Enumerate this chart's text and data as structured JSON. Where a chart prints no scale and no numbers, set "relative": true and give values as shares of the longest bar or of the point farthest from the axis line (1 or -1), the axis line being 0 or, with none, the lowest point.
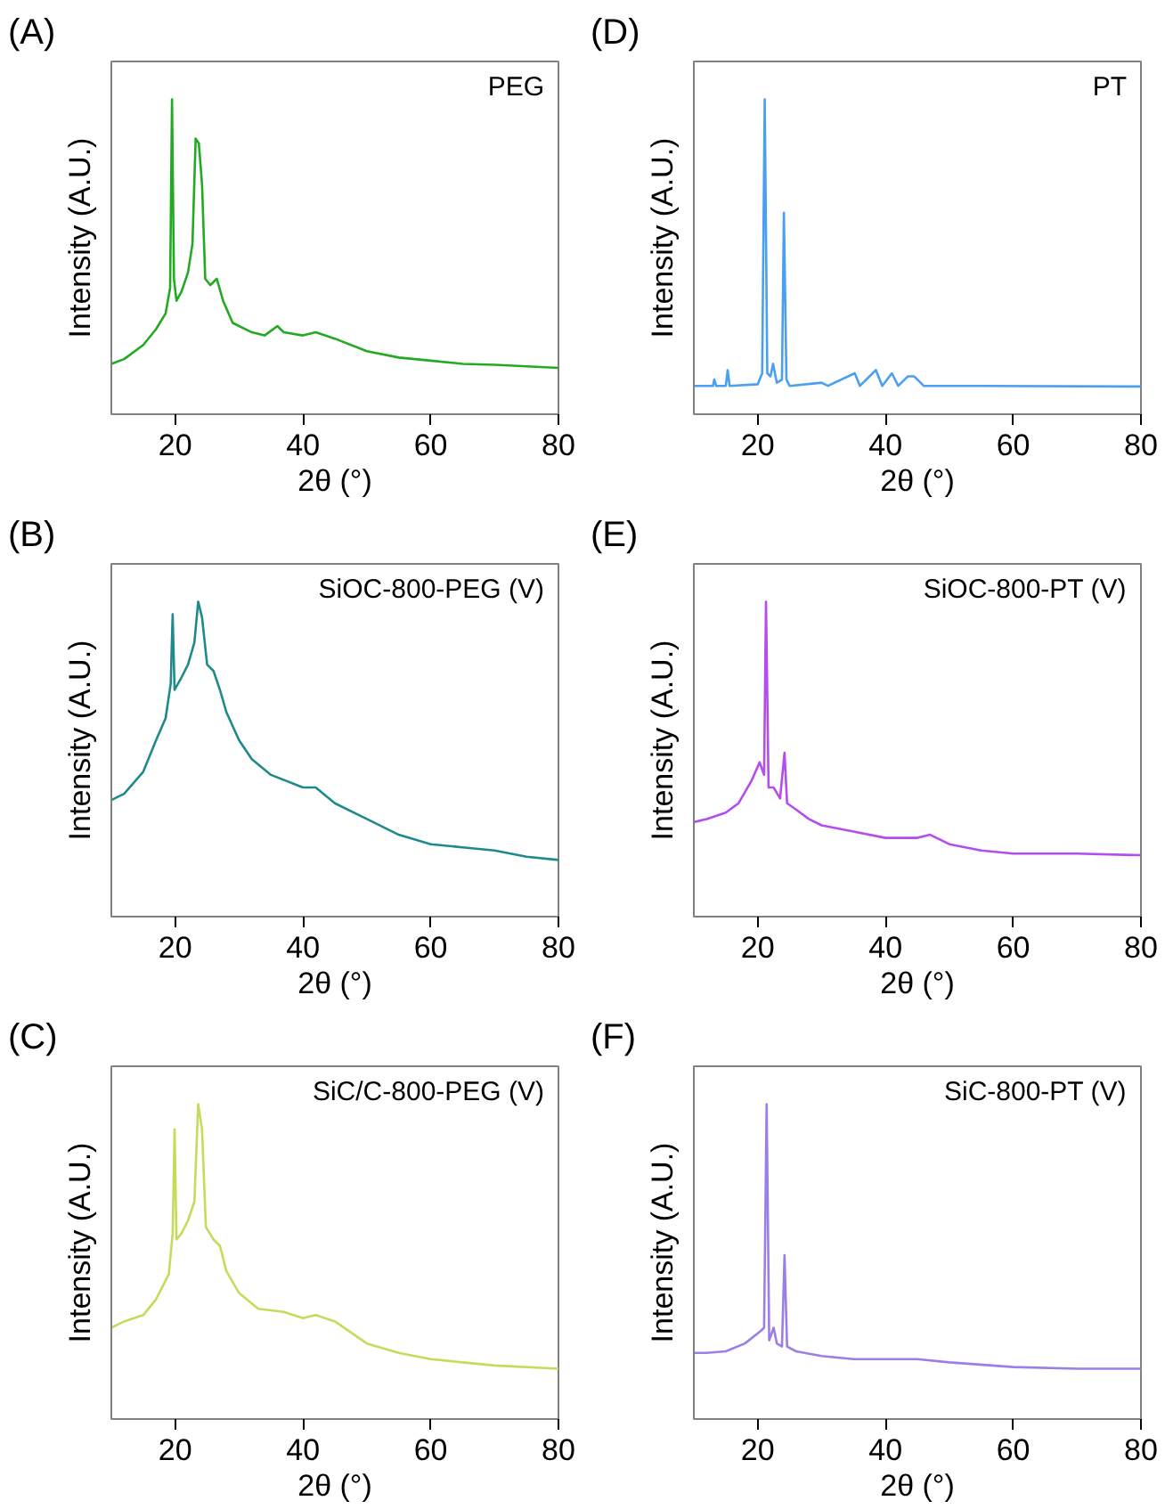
{
  "chart_data": [
    {
      "type": "line",
      "relative": true,
      "xlabel": "2θ (°)",
      "ylabel": "Intensity (A.U.)",
      "annotations": [
        "(A)",
        "PEG"
      ],
      "xlim": [
        10,
        80
      ],
      "xticks": [
        20,
        40,
        60,
        80
      ],
      "grid": false,
      "series": [
        {
          "color": "#22aa22",
          "x": [
            10,
            12,
            15,
            17,
            18.5,
            19.2,
            19.5,
            19.8,
            20.2,
            21,
            22,
            22.7,
            23.2,
            23.7,
            24.2,
            24.7,
            25.5,
            26.5,
            27.5,
            29,
            32,
            34,
            36,
            37,
            40,
            42,
            45,
            50,
            55,
            60,
            65,
            70,
            80
          ],
          "values": [
            0.16,
            0.175,
            0.22,
            0.27,
            0.32,
            0.4,
            1.0,
            0.43,
            0.36,
            0.39,
            0.45,
            0.54,
            0.875,
            0.86,
            0.73,
            0.43,
            0.41,
            0.43,
            0.36,
            0.29,
            0.26,
            0.25,
            0.28,
            0.26,
            0.25,
            0.26,
            0.24,
            0.2,
            0.18,
            0.17,
            0.16,
            0.157,
            0.147
          ]
        }
      ]
    },
    {
      "type": "line",
      "relative": true,
      "xlabel": "2θ (°)",
      "ylabel": "Intensity (A.U.)",
      "annotations": [
        "(D)",
        "PT"
      ],
      "xlim": [
        10,
        80
      ],
      "xticks": [
        20,
        40,
        60,
        80
      ],
      "grid": false,
      "series": [
        {
          "color": "#4a9ff0",
          "x": [
            10,
            13,
            13.2,
            13.5,
            15,
            15.3,
            15.6,
            20,
            20.7,
            21.1,
            21.5,
            22,
            22.4,
            23,
            23.8,
            24.1,
            24.5,
            25,
            30,
            31,
            35.2,
            36,
            38.5,
            39.5,
            41,
            42,
            43.5,
            44.5,
            46,
            55,
            80
          ],
          "values": [
            0.09,
            0.09,
            0.11,
            0.09,
            0.09,
            0.14,
            0.09,
            0.095,
            0.13,
            1.0,
            0.13,
            0.12,
            0.16,
            0.1,
            0.11,
            0.64,
            0.11,
            0.09,
            0.1,
            0.09,
            0.13,
            0.09,
            0.14,
            0.09,
            0.13,
            0.09,
            0.12,
            0.12,
            0.09,
            0.09,
            0.088
          ]
        }
      ]
    },
    {
      "type": "line",
      "relative": true,
      "xlabel": "2θ (°)",
      "ylabel": "Intensity (A.U.)",
      "annotations": [
        "(B)",
        "SiOC-800-PEG (V)"
      ],
      "xlim": [
        10,
        80
      ],
      "xticks": [
        20,
        40,
        60,
        80
      ],
      "grid": false,
      "series": [
        {
          "color": "#1f8a8a",
          "x": [
            10,
            12,
            15,
            17,
            18.5,
            19.3,
            19.6,
            19.9,
            21,
            22,
            23,
            23.6,
            24.2,
            25,
            26,
            27,
            28,
            30,
            32,
            35,
            40,
            42,
            45,
            50,
            55,
            60,
            65,
            70,
            75,
            80
          ],
          "values": [
            0.37,
            0.39,
            0.46,
            0.56,
            0.63,
            0.74,
            0.96,
            0.72,
            0.76,
            0.8,
            0.87,
            1.0,
            0.95,
            0.8,
            0.78,
            0.72,
            0.65,
            0.56,
            0.5,
            0.45,
            0.41,
            0.41,
            0.36,
            0.31,
            0.26,
            0.23,
            0.22,
            0.21,
            0.19,
            0.18
          ]
        }
      ]
    },
    {
      "type": "line",
      "relative": true,
      "xlabel": "2θ (°)",
      "ylabel": "Intensity (A.U.)",
      "annotations": [
        "(E)",
        "SiOC-800-PT (V)"
      ],
      "xlim": [
        10,
        80
      ],
      "xticks": [
        20,
        40,
        60,
        80
      ],
      "grid": false,
      "series": [
        {
          "color": "#b44cf0",
          "x": [
            10,
            12,
            15,
            17,
            19,
            20.3,
            21,
            21.3,
            21.7,
            22.5,
            23.5,
            24.2,
            24.6,
            26,
            28,
            30,
            35,
            40,
            45,
            47,
            50,
            55,
            60,
            70,
            80
          ],
          "values": [
            0.3,
            0.31,
            0.33,
            0.36,
            0.43,
            0.49,
            0.45,
            1.0,
            0.41,
            0.41,
            0.375,
            0.52,
            0.36,
            0.34,
            0.31,
            0.29,
            0.27,
            0.25,
            0.25,
            0.26,
            0.23,
            0.21,
            0.2,
            0.2,
            0.195
          ]
        }
      ]
    },
    {
      "type": "line",
      "relative": true,
      "xlabel": "2θ (°)",
      "ylabel": "Intensity (A.U.)",
      "annotations": [
        "(C)",
        "SiC/C-800-PEG (V)"
      ],
      "xlim": [
        10,
        80
      ],
      "xticks": [
        20,
        40,
        60,
        80
      ],
      "grid": false,
      "series": [
        {
          "color": "#c5dc5a",
          "x": [
            10,
            12,
            15,
            17,
            19,
            19.6,
            19.9,
            20.2,
            21,
            22,
            23,
            23.6,
            24.2,
            24.8,
            26,
            27,
            28,
            30,
            33,
            37,
            40,
            42,
            45,
            50,
            55,
            60,
            65,
            70,
            80
          ],
          "values": [
            0.29,
            0.31,
            0.33,
            0.38,
            0.46,
            0.59,
            0.92,
            0.57,
            0.59,
            0.63,
            0.69,
            1.0,
            0.92,
            0.61,
            0.57,
            0.55,
            0.47,
            0.4,
            0.35,
            0.34,
            0.32,
            0.33,
            0.31,
            0.24,
            0.21,
            0.19,
            0.18,
            0.17,
            0.16
          ]
        }
      ]
    },
    {
      "type": "line",
      "relative": true,
      "xlabel": "2θ (°)",
      "ylabel": "Intensity (A.U.)",
      "annotations": [
        "(F)",
        "SiC-800-PT (V)"
      ],
      "xlim": [
        10,
        80
      ],
      "xticks": [
        20,
        40,
        60,
        80
      ],
      "grid": false,
      "series": [
        {
          "color": "#9b7fe8",
          "x": [
            10,
            12,
            15,
            18,
            20.5,
            21,
            21.4,
            21.8,
            22.5,
            23,
            23.8,
            24.2,
            24.6,
            26,
            30,
            35,
            40,
            45,
            50,
            60,
            70,
            80
          ],
          "values": [
            0.21,
            0.21,
            0.215,
            0.24,
            0.28,
            0.29,
            1.0,
            0.25,
            0.29,
            0.24,
            0.23,
            0.52,
            0.23,
            0.215,
            0.2,
            0.19,
            0.19,
            0.19,
            0.18,
            0.165,
            0.16,
            0.16
          ]
        }
      ]
    }
  ]
}
